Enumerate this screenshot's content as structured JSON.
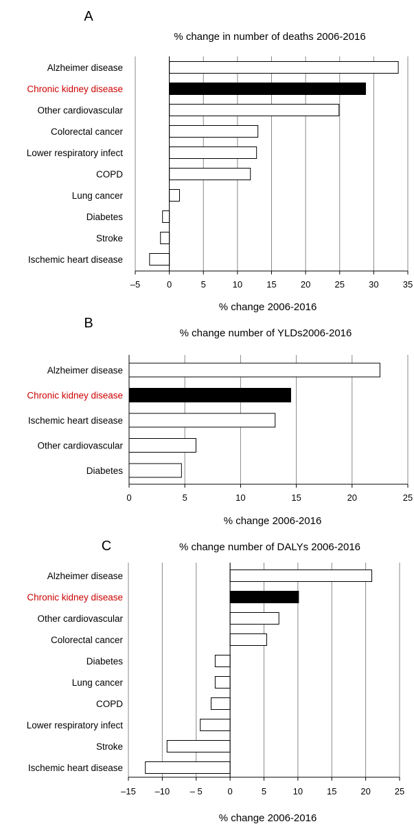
{
  "colors": {
    "highlight_text": "#cc0000",
    "highlight_bar": "#000000",
    "bar": "#ffffff",
    "grid": "#888888"
  },
  "chart_data": [
    {
      "type": "bar",
      "orientation": "horizontal",
      "panel": "A",
      "title": "% change in number of deaths 2006-2016",
      "xlabel": "% change 2006-2016",
      "xlim": [
        -5,
        35
      ],
      "xticks": [
        -5,
        0,
        5,
        10,
        15,
        20,
        25,
        30,
        35
      ],
      "xtick_labels": [
        "–5",
        "0",
        "5",
        "10",
        "15",
        "20",
        "25",
        "30",
        "35"
      ],
      "grid": true,
      "categories": [
        "Alzheimer disease",
        "Chronic kidney disease",
        "Other cardiovascular",
        "Colorectal cancer",
        "Lower respiratory infect",
        "COPD",
        "Lung cancer",
        "Diabetes",
        "Stroke",
        "Ischemic heart disease"
      ],
      "values": [
        33.6,
        28.8,
        24.9,
        13,
        12.8,
        11.9,
        1.5,
        -1,
        -1.3,
        -2.9
      ],
      "highlight": "Chronic kidney disease"
    },
    {
      "type": "bar",
      "orientation": "horizontal",
      "panel": "B",
      "title": "% change number of YLDs2006-2016",
      "xlabel": "% change 2006-2016",
      "xlim": [
        0,
        25
      ],
      "xticks": [
        0,
        5,
        10,
        15,
        20,
        25
      ],
      "xtick_labels": [
        "0",
        "5",
        "10",
        "15",
        "20",
        "25"
      ],
      "grid": true,
      "categories": [
        "Alzheimer disease",
        "Chronic kidney disease",
        "Ischemic heart disease",
        "Other cardiovascular",
        "Diabetes"
      ],
      "values": [
        22.5,
        14.5,
        13.1,
        6,
        4.7
      ],
      "highlight": "Chronic kidney disease"
    },
    {
      "type": "bar",
      "orientation": "horizontal",
      "panel": "C",
      "title": "% change number of DALYs 2006-2016",
      "xlabel": "% change 2006-2016",
      "xlim": [
        -15,
        25
      ],
      "xticks": [
        -15,
        -10,
        -5,
        0,
        5,
        10,
        15,
        20,
        25
      ],
      "xtick_labels": [
        "–15",
        "–10",
        "– 5",
        "0",
        "5",
        "10",
        "15",
        "20",
        "25"
      ],
      "grid": true,
      "categories": [
        "Alzheimer disease",
        "Chronic kidney disease",
        "Other cardiovascular",
        "Colorectal cancer",
        "Diabetes",
        "Lung cancer",
        "COPD",
        "Lower respiratory infect",
        "Stroke",
        "Ischemic heart disease"
      ],
      "values": [
        20.9,
        10.1,
        7.2,
        5.4,
        -2.2,
        -2.2,
        -2.8,
        -4.4,
        -9.3,
        -12.5
      ],
      "highlight": "Chronic kidney disease"
    }
  ]
}
